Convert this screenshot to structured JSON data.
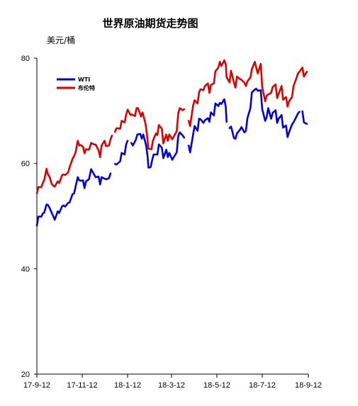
{
  "chart_data": {
    "type": "line",
    "title": "世界原油期货走势图",
    "ylabel": "美元/桶",
    "xlabel": "",
    "ylim": [
      20,
      80
    ],
    "yticks": [
      20,
      40,
      60,
      80
    ],
    "xlim": [
      "2017-09-12",
      "2018-09-12"
    ],
    "xticks": [
      {
        "date": "2017-09-12",
        "label": "17-9-12"
      },
      {
        "date": "2017-11-12",
        "label": "17-11-12"
      },
      {
        "date": "2018-01-12",
        "label": "18-1-12"
      },
      {
        "date": "2018-03-12",
        "label": "18-3-12"
      },
      {
        "date": "2018-05-12",
        "label": "18-5-12"
      },
      {
        "date": "2018-07-12",
        "label": "18-7-12"
      },
      {
        "date": "2018-09-12",
        "label": "18-9-12"
      }
    ],
    "grid": false,
    "legend_position": "top-left",
    "series": [
      {
        "name": "WTI",
        "color": "#0000dd",
        "points": [
          [
            "2017-09-12",
            48.2
          ],
          [
            "2017-09-14",
            49.9
          ],
          [
            "2017-09-18",
            49.9
          ],
          [
            "2017-09-20",
            50.5
          ],
          [
            "2017-09-22",
            50.7
          ],
          [
            "2017-09-25",
            52.2
          ],
          [
            "2017-09-27",
            52.1
          ],
          [
            "2017-09-29",
            51.6
          ],
          [
            "2017-10-02",
            50.6
          ],
          [
            "2017-10-04",
            50.0
          ],
          [
            "2017-10-06",
            49.3
          ],
          [
            "2017-10-10",
            50.9
          ],
          [
            "2017-10-12",
            50.6
          ],
          [
            "2017-10-16",
            51.9
          ],
          [
            "2017-10-18",
            52.0
          ],
          [
            "2017-10-20",
            51.8
          ],
          [
            "2017-10-24",
            52.5
          ],
          [
            "2017-10-26",
            52.6
          ],
          [
            "2017-10-30",
            54.2
          ],
          [
            "2017-11-01",
            54.3
          ],
          [
            "2017-11-03",
            55.6
          ],
          [
            "2017-11-06",
            57.4
          ],
          [
            "2017-11-08",
            56.8
          ],
          [
            "2017-11-10",
            56.7
          ],
          [
            "2017-11-13",
            56.8
          ],
          [
            "2017-11-15",
            55.3
          ],
          [
            "2017-11-17",
            56.6
          ],
          [
            "2017-11-21",
            57.0
          ],
          [
            "2017-11-24",
            58.9
          ],
          [
            "2017-11-28",
            57.9
          ],
          [
            "2017-11-30",
            57.4
          ],
          [
            "2017-12-04",
            57.5
          ],
          [
            "2017-12-06",
            56.0
          ],
          [
            "2017-12-08",
            57.4
          ],
          [
            "2017-12-12",
            57.1
          ],
          [
            "2017-12-14",
            57.0
          ],
          [
            "2017-12-18",
            57.2
          ],
          [
            "2017-12-20",
            58.1
          ],
          null,
          [
            "2017-12-26",
            59.9
          ],
          [
            "2017-12-28",
            59.8
          ],
          [
            "2018-01-02",
            60.4
          ],
          [
            "2018-01-04",
            62.0
          ],
          [
            "2018-01-08",
            61.7
          ],
          [
            "2018-01-10",
            63.6
          ],
          [
            "2018-01-12",
            64.3
          ],
          null,
          [
            "2018-01-17",
            63.9
          ],
          [
            "2018-01-19",
            63.4
          ],
          [
            "2018-01-23",
            64.5
          ],
          [
            "2018-01-25",
            65.5
          ],
          [
            "2018-01-29",
            65.6
          ],
          [
            "2018-01-31",
            64.7
          ],
          [
            "2018-02-02",
            65.5
          ],
          [
            "2018-02-06",
            63.4
          ],
          [
            "2018-02-08",
            61.2
          ],
          [
            "2018-02-09",
            59.2
          ],
          [
            "2018-02-12",
            59.3
          ],
          [
            "2018-02-14",
            60.6
          ],
          [
            "2018-02-16",
            61.7
          ],
          [
            "2018-02-21",
            61.7
          ],
          [
            "2018-02-23",
            63.6
          ],
          [
            "2018-02-27",
            63.0
          ],
          [
            "2018-03-01",
            61.0
          ],
          [
            "2018-03-05",
            62.6
          ],
          [
            "2018-03-07",
            61.2
          ],
          [
            "2018-03-09",
            62.0
          ],
          [
            "2018-03-13",
            60.7
          ],
          [
            "2018-03-15",
            61.2
          ],
          [
            "2018-03-19",
            62.1
          ],
          [
            "2018-03-21",
            65.2
          ],
          [
            "2018-03-23",
            65.9
          ],
          [
            "2018-03-27",
            65.3
          ],
          [
            "2018-03-29",
            64.9
          ],
          null,
          [
            "2018-04-04",
            63.4
          ],
          [
            "2018-04-06",
            62.1
          ],
          [
            "2018-04-10",
            65.5
          ],
          [
            "2018-04-12",
            67.1
          ],
          [
            "2018-04-16",
            66.2
          ],
          [
            "2018-04-18",
            68.5
          ],
          [
            "2018-04-20",
            68.4
          ],
          [
            "2018-04-24",
            67.7
          ],
          [
            "2018-04-26",
            68.2
          ],
          [
            "2018-04-30",
            68.6
          ],
          [
            "2018-05-02",
            67.9
          ],
          [
            "2018-05-04",
            69.7
          ],
          [
            "2018-05-08",
            69.1
          ],
          [
            "2018-05-10",
            71.4
          ],
          [
            "2018-05-14",
            70.9
          ],
          [
            "2018-05-16",
            71.5
          ],
          [
            "2018-05-18",
            71.3
          ],
          [
            "2018-05-22",
            72.2
          ],
          [
            "2018-05-24",
            70.7
          ],
          [
            "2018-05-25",
            67.9
          ],
          null,
          [
            "2018-05-29",
            66.7
          ],
          [
            "2018-05-31",
            67.0
          ],
          [
            "2018-06-04",
            64.8
          ],
          [
            "2018-06-06",
            64.7
          ],
          [
            "2018-06-08",
            65.7
          ],
          [
            "2018-06-12",
            66.4
          ],
          [
            "2018-06-14",
            66.9
          ],
          [
            "2018-06-18",
            65.9
          ],
          [
            "2018-06-20",
            66.2
          ],
          [
            "2018-06-22",
            68.6
          ],
          [
            "2018-06-26",
            70.5
          ],
          [
            "2018-06-28",
            73.5
          ],
          [
            "2018-07-02",
            74.0
          ],
          [
            "2018-07-04",
            74.2
          ],
          [
            "2018-07-06",
            73.8
          ],
          [
            "2018-07-10",
            73.9
          ],
          [
            "2018-07-12",
            70.3
          ],
          [
            "2018-07-16",
            68.1
          ],
          [
            "2018-07-18",
            68.8
          ],
          [
            "2018-07-20",
            70.5
          ],
          [
            "2018-07-24",
            68.5
          ],
          [
            "2018-07-26",
            69.6
          ],
          [
            "2018-07-30",
            70.1
          ],
          [
            "2018-08-01",
            67.7
          ],
          [
            "2018-08-03",
            68.5
          ],
          [
            "2018-08-07",
            69.2
          ],
          [
            "2018-08-09",
            66.8
          ],
          [
            "2018-08-13",
            67.2
          ],
          [
            "2018-08-15",
            65.0
          ],
          [
            "2018-08-17",
            65.9
          ],
          [
            "2018-08-21",
            67.4
          ],
          [
            "2018-08-23",
            67.8
          ],
          [
            "2018-08-27",
            68.9
          ],
          [
            "2018-08-29",
            69.5
          ],
          [
            "2018-08-31",
            69.8
          ],
          null,
          [
            "2018-09-04",
            69.9
          ],
          [
            "2018-09-06",
            67.8
          ],
          [
            "2018-09-10",
            67.5
          ]
        ]
      },
      {
        "name": "布伦特",
        "color": "#dd0000",
        "points": [
          [
            "2017-09-12",
            54.3
          ],
          [
            "2017-09-14",
            55.5
          ],
          [
            "2017-09-18",
            55.5
          ],
          [
            "2017-09-20",
            56.3
          ],
          [
            "2017-09-22",
            56.9
          ],
          [
            "2017-09-25",
            59.0
          ],
          [
            "2017-09-27",
            57.9
          ],
          [
            "2017-09-29",
            57.5
          ],
          [
            "2017-10-02",
            56.1
          ],
          [
            "2017-10-04",
            55.8
          ],
          [
            "2017-10-06",
            55.6
          ],
          [
            "2017-10-10",
            56.6
          ],
          [
            "2017-10-12",
            56.3
          ],
          [
            "2017-10-16",
            57.8
          ],
          [
            "2017-10-18",
            57.9
          ],
          [
            "2017-10-20",
            57.8
          ],
          [
            "2017-10-24",
            58.3
          ],
          [
            "2017-10-26",
            59.3
          ],
          [
            "2017-10-30",
            60.9
          ],
          [
            "2017-11-01",
            61.4
          ],
          [
            "2017-11-03",
            62.1
          ],
          [
            "2017-11-06",
            64.3
          ],
          [
            "2017-11-08",
            63.4
          ],
          [
            "2017-11-10",
            63.5
          ],
          [
            "2017-11-13",
            63.2
          ],
          [
            "2017-11-15",
            61.9
          ],
          [
            "2017-11-17",
            62.7
          ],
          [
            "2017-11-21",
            62.6
          ],
          [
            "2017-11-24",
            63.9
          ],
          [
            "2017-11-28",
            63.6
          ],
          [
            "2017-11-30",
            63.6
          ],
          [
            "2017-12-04",
            62.5
          ],
          [
            "2017-12-06",
            61.2
          ],
          [
            "2017-12-08",
            63.4
          ],
          [
            "2017-12-12",
            64.3
          ],
          [
            "2017-12-14",
            63.3
          ],
          [
            "2017-12-18",
            63.4
          ],
          [
            "2017-12-20",
            64.6
          ],
          [
            "2017-12-22",
            65.3
          ],
          null,
          [
            "2017-12-26",
            66.0
          ],
          [
            "2017-12-28",
            66.7
          ],
          [
            "2018-01-02",
            66.6
          ],
          [
            "2018-01-04",
            68.1
          ],
          [
            "2018-01-08",
            67.8
          ],
          [
            "2018-01-10",
            69.2
          ],
          [
            "2018-01-12",
            70.2
          ],
          [
            "2018-01-16",
            69.2
          ],
          [
            "2018-01-18",
            69.3
          ],
          [
            "2018-01-22",
            69.0
          ],
          [
            "2018-01-24",
            70.5
          ],
          [
            "2018-01-26",
            70.5
          ],
          [
            "2018-01-30",
            68.9
          ],
          [
            "2018-02-01",
            69.7
          ],
          [
            "2018-02-05",
            67.6
          ],
          [
            "2018-02-07",
            65.5
          ],
          [
            "2018-02-09",
            62.8
          ],
          [
            "2018-02-13",
            62.7
          ],
          [
            "2018-02-15",
            64.3
          ],
          [
            "2018-02-19",
            65.7
          ],
          [
            "2018-02-21",
            65.4
          ],
          [
            "2018-02-23",
            67.3
          ],
          [
            "2018-02-27",
            66.6
          ],
          [
            "2018-03-01",
            63.8
          ],
          [
            "2018-03-05",
            65.5
          ],
          [
            "2018-03-07",
            64.3
          ],
          [
            "2018-03-09",
            65.5
          ],
          [
            "2018-03-13",
            64.6
          ],
          [
            "2018-03-15",
            65.1
          ],
          [
            "2018-03-19",
            66.1
          ],
          [
            "2018-03-21",
            69.5
          ],
          [
            "2018-03-23",
            70.5
          ],
          [
            "2018-03-27",
            70.1
          ],
          [
            "2018-03-29",
            70.3
          ],
          null,
          [
            "2018-04-04",
            68.1
          ],
          [
            "2018-04-06",
            67.1
          ],
          [
            "2018-04-10",
            71.0
          ],
          [
            "2018-04-12",
            72.0
          ],
          [
            "2018-04-16",
            71.4
          ],
          [
            "2018-04-18",
            73.5
          ],
          [
            "2018-04-20",
            74.1
          ],
          [
            "2018-04-24",
            73.9
          ],
          [
            "2018-04-26",
            74.7
          ],
          [
            "2018-04-30",
            75.2
          ],
          [
            "2018-05-02",
            73.4
          ],
          [
            "2018-05-04",
            74.9
          ],
          [
            "2018-05-08",
            75.2
          ],
          [
            "2018-05-10",
            77.5
          ],
          [
            "2018-05-14",
            78.2
          ],
          [
            "2018-05-16",
            79.3
          ],
          [
            "2018-05-18",
            78.5
          ],
          [
            "2018-05-22",
            79.6
          ],
          [
            "2018-05-24",
            78.8
          ],
          [
            "2018-05-25",
            76.4
          ],
          [
            "2018-05-29",
            75.4
          ],
          [
            "2018-05-31",
            77.6
          ],
          [
            "2018-06-04",
            75.3
          ],
          [
            "2018-06-06",
            74.4
          ],
          [
            "2018-06-08",
            76.5
          ],
          [
            "2018-06-12",
            76.0
          ],
          [
            "2018-06-14",
            75.9
          ],
          [
            "2018-06-18",
            75.3
          ],
          [
            "2018-06-20",
            74.7
          ],
          [
            "2018-06-22",
            75.6
          ],
          [
            "2018-06-26",
            76.3
          ],
          [
            "2018-06-28",
            77.9
          ],
          [
            "2018-07-02",
            79.3
          ],
          [
            "2018-07-04",
            78.2
          ],
          [
            "2018-07-06",
            77.1
          ],
          [
            "2018-07-10",
            78.9
          ],
          [
            "2018-07-12",
            74.5
          ],
          [
            "2018-07-16",
            71.8
          ],
          [
            "2018-07-18",
            72.9
          ],
          [
            "2018-07-20",
            73.1
          ],
          [
            "2018-07-24",
            73.4
          ],
          [
            "2018-07-26",
            74.5
          ],
          [
            "2018-07-30",
            75.0
          ],
          [
            "2018-08-01",
            72.4
          ],
          [
            "2018-08-03",
            73.2
          ],
          [
            "2018-08-07",
            74.7
          ],
          [
            "2018-08-09",
            72.1
          ],
          [
            "2018-08-13",
            72.6
          ],
          [
            "2018-08-15",
            70.8
          ],
          [
            "2018-08-17",
            71.8
          ],
          [
            "2018-08-21",
            72.6
          ],
          [
            "2018-08-23",
            74.7
          ],
          [
            "2018-08-27",
            76.2
          ],
          [
            "2018-08-29",
            77.1
          ],
          [
            "2018-08-31",
            77.4
          ],
          [
            "2018-09-04",
            78.2
          ],
          [
            "2018-09-06",
            76.5
          ],
          [
            "2018-09-10",
            77.4
          ]
        ]
      }
    ]
  }
}
